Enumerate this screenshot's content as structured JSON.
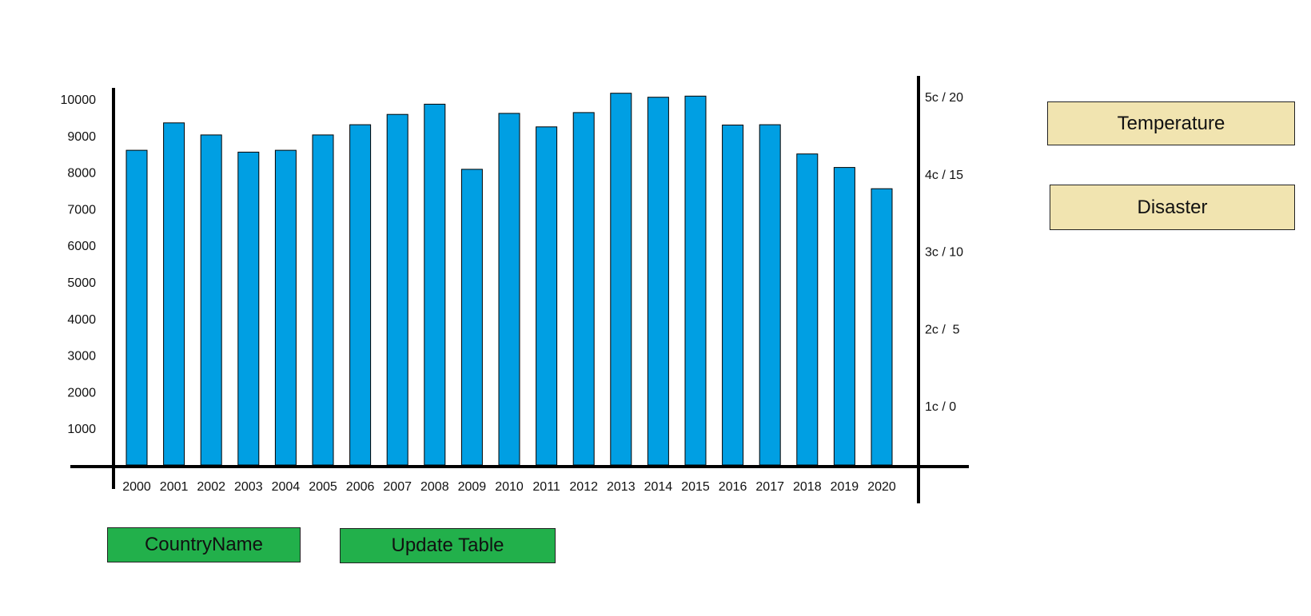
{
  "chart_data": {
    "type": "bar",
    "categories": [
      "2000",
      "2001",
      "2002",
      "2003",
      "2004",
      "2005",
      "2006",
      "2007",
      "2008",
      "2009",
      "2010",
      "2011",
      "2012",
      "2013",
      "2014",
      "2015",
      "2016",
      "2017",
      "2018",
      "2019",
      "2020"
    ],
    "values": [
      8600,
      9350,
      9020,
      8550,
      8600,
      9020,
      9300,
      9580,
      9860,
      8080,
      9610,
      9240,
      9630,
      10160,
      10050,
      10080,
      9290,
      9300,
      8500,
      8130,
      7550
    ],
    "ylim": [
      0,
      10000
    ],
    "left_axis_ticks": [
      "1000",
      "2000",
      "3000",
      "4000",
      "5000",
      "6000",
      "7000",
      "8000",
      "9000",
      "10000"
    ],
    "right_axis_ticks": [
      "1c / 0",
      "2c /  5",
      "3c / 10",
      "4c / 15",
      "5c / 20"
    ],
    "bar_color": "#009fe3",
    "grid": false,
    "legend": "none"
  },
  "buttons": {
    "country": "CountryName",
    "update": "Update Table",
    "temperature": "Temperature",
    "disaster": "Disaster"
  },
  "colors": {
    "green_button": "#22b04b",
    "tan_button": "#f1e4b0"
  }
}
